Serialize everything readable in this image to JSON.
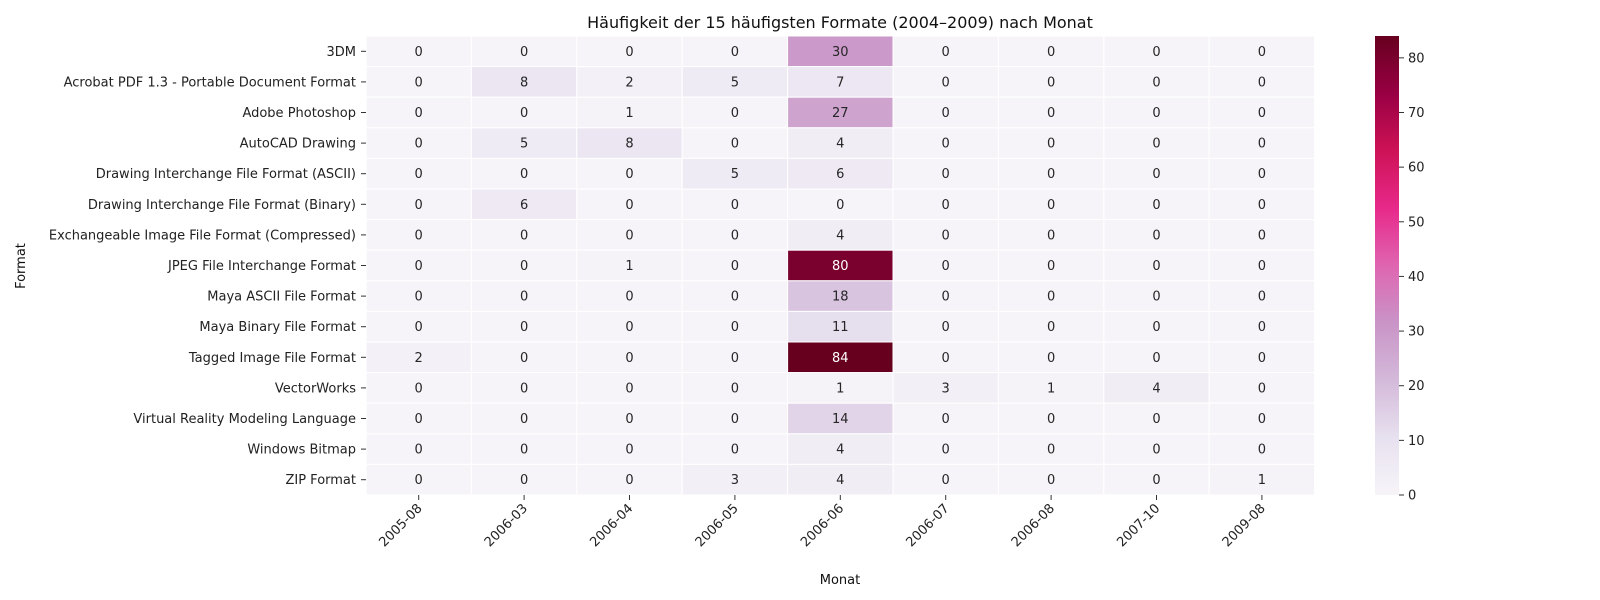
{
  "chart_data": {
    "type": "heatmap",
    "title": "Häufigkeit der 15 häufigsten Formate (2004–2009) nach Monat",
    "xlabel": "Monat",
    "ylabel": "Format",
    "columns": [
      "2005-08",
      "2006-03",
      "2006-04",
      "2006-05",
      "2006-06",
      "2006-07",
      "2006-08",
      "2007-10",
      "2009-08"
    ],
    "rows": [
      "3DM",
      "Acrobat PDF 1.3 - Portable Document Format",
      "Adobe Photoshop",
      "AutoCAD Drawing",
      "Drawing Interchange File Format (ASCII)",
      "Drawing Interchange File Format (Binary)",
      "Exchangeable Image File Format (Compressed)",
      "JPEG File Interchange Format",
      "Maya ASCII File Format",
      "Maya Binary File Format",
      "Tagged Image File Format",
      "VectorWorks",
      "Virtual Reality Modeling Language",
      "Windows Bitmap",
      "ZIP Format"
    ],
    "values": [
      [
        0,
        0,
        0,
        0,
        30,
        0,
        0,
        0,
        0
      ],
      [
        0,
        8,
        2,
        5,
        7,
        0,
        0,
        0,
        0
      ],
      [
        0,
        0,
        1,
        0,
        27,
        0,
        0,
        0,
        0
      ],
      [
        0,
        5,
        8,
        0,
        4,
        0,
        0,
        0,
        0
      ],
      [
        0,
        0,
        0,
        5,
        6,
        0,
        0,
        0,
        0
      ],
      [
        0,
        6,
        0,
        0,
        0,
        0,
        0,
        0,
        0
      ],
      [
        0,
        0,
        0,
        0,
        4,
        0,
        0,
        0,
        0
      ],
      [
        0,
        0,
        1,
        0,
        80,
        0,
        0,
        0,
        0
      ],
      [
        0,
        0,
        0,
        0,
        18,
        0,
        0,
        0,
        0
      ],
      [
        0,
        0,
        0,
        0,
        11,
        0,
        0,
        0,
        0
      ],
      [
        2,
        0,
        0,
        0,
        84,
        0,
        0,
        0,
        0
      ],
      [
        0,
        0,
        0,
        0,
        1,
        3,
        1,
        4,
        0
      ],
      [
        0,
        0,
        0,
        0,
        14,
        0,
        0,
        0,
        0
      ],
      [
        0,
        0,
        0,
        0,
        4,
        0,
        0,
        0,
        0
      ],
      [
        0,
        0,
        0,
        3,
        4,
        0,
        0,
        0,
        1
      ]
    ],
    "colorbar": {
      "min": 0,
      "max": 84,
      "ticks": [
        0,
        10,
        20,
        30,
        40,
        50,
        60,
        70,
        80
      ],
      "colormap": "PuRd",
      "stops": [
        "#f7f4f9",
        "#e7e1ef",
        "#d4b9da",
        "#c994c7",
        "#df65b0",
        "#e7298a",
        "#ce1256",
        "#980043",
        "#67001f"
      ]
    },
    "grid": false,
    "legend": "colorbar-right"
  }
}
